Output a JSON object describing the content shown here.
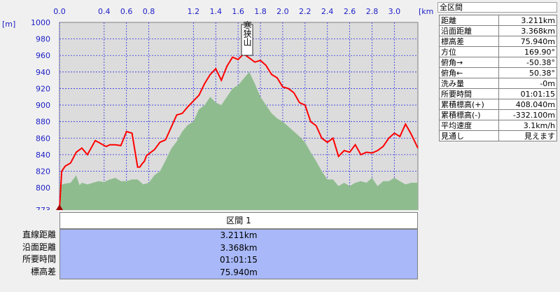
{
  "chart_data": {
    "type": "area",
    "title": "",
    "xlabel": "[km]",
    "ylabel": "[m]",
    "xlim": [
      0,
      3.211
    ],
    "ylim": [
      773,
      1000
    ],
    "x_ticks": [
      "0.0",
      "0.4",
      "0.6",
      "0.8",
      "1.2",
      "1.4",
      "1.6",
      "1.8",
      "2.0",
      "2.2",
      "2.4",
      "2.6",
      "2.8",
      "3.0"
    ],
    "y_ticks": [
      1000,
      980,
      960,
      940,
      920,
      900,
      880,
      860,
      840,
      820,
      800,
      773
    ],
    "peak": {
      "name": "寒狭山",
      "x": 1.69,
      "y": 960
    },
    "series": [
      {
        "name": "elevation-profile",
        "x": [
          0,
          0.02,
          0.05,
          0.1,
          0.15,
          0.2,
          0.25,
          0.3,
          0.32,
          0.35,
          0.4,
          0.42,
          0.45,
          0.5,
          0.55,
          0.6,
          0.65,
          0.7,
          0.72,
          0.74,
          0.76,
          0.78,
          0.8,
          0.85,
          0.9,
          0.95,
          1.0,
          1.05,
          1.1,
          1.15,
          1.2,
          1.25,
          1.3,
          1.35,
          1.4,
          1.45,
          1.5,
          1.55,
          1.6,
          1.65,
          1.7,
          1.75,
          1.8,
          1.85,
          1.9,
          1.95,
          2.0,
          2.05,
          2.1,
          2.15,
          2.2,
          2.25,
          2.3,
          2.35,
          2.4,
          2.45,
          2.5,
          2.55,
          2.6,
          2.65,
          2.7,
          2.75,
          2.8,
          2.85,
          2.9,
          2.95,
          3.0,
          3.05,
          3.1,
          3.15,
          3.211
        ],
        "values": [
          775,
          820,
          826,
          830,
          843,
          848,
          840,
          852,
          857,
          855,
          851,
          850,
          852,
          852,
          851,
          868,
          866,
          825,
          825,
          829,
          832,
          839,
          841,
          846,
          855,
          858,
          873,
          888,
          890,
          898,
          905,
          912,
          926,
          937,
          944,
          930,
          947,
          958,
          955,
          962,
          957,
          952,
          954,
          948,
          937,
          933,
          922,
          920,
          915,
          903,
          900,
          880,
          875,
          860,
          855,
          860,
          838,
          845,
          843,
          852,
          840,
          843,
          842,
          845,
          850,
          860,
          866,
          862,
          877,
          865,
          848
        ]
      },
      {
        "name": "terrain",
        "x": [
          0,
          0.05,
          0.1,
          0.15,
          0.18,
          0.2,
          0.25,
          0.3,
          0.35,
          0.4,
          0.45,
          0.5,
          0.55,
          0.6,
          0.65,
          0.7,
          0.75,
          0.8,
          0.85,
          0.9,
          0.95,
          1.0,
          1.05,
          1.1,
          1.15,
          1.2,
          1.25,
          1.3,
          1.35,
          1.4,
          1.45,
          1.5,
          1.55,
          1.6,
          1.65,
          1.7,
          1.75,
          1.8,
          1.85,
          1.9,
          1.95,
          2.0,
          2.05,
          2.1,
          2.15,
          2.2,
          2.25,
          2.3,
          2.35,
          2.4,
          2.45,
          2.5,
          2.55,
          2.6,
          2.65,
          2.7,
          2.75,
          2.8,
          2.85,
          2.9,
          2.95,
          3.0,
          3.05,
          3.1,
          3.15,
          3.211
        ],
        "values": [
          803,
          805,
          806,
          815,
          803,
          806,
          804,
          806,
          808,
          807,
          810,
          812,
          808,
          808,
          810,
          810,
          804,
          806,
          815,
          820,
          833,
          847,
          856,
          868,
          876,
          880,
          895,
          900,
          910,
          903,
          900,
          910,
          920,
          924,
          932,
          940,
          926,
          910,
          900,
          890,
          884,
          880,
          874,
          868,
          862,
          855,
          843,
          832,
          820,
          810,
          810,
          802,
          806,
          802,
          806,
          808,
          806,
          812,
          802,
          808,
          808,
          812,
          808,
          804,
          806,
          806
        ]
      }
    ]
  },
  "info": {
    "header": "全区間",
    "rows": [
      {
        "label": "距離",
        "value": "3.211km"
      },
      {
        "label": "沿面距離",
        "value": "3.368km"
      },
      {
        "label": "標高差",
        "value": "75.940m"
      },
      {
        "label": "方位",
        "value": "169.90°"
      },
      {
        "label": "俯角→",
        "value": "-50.38°"
      },
      {
        "label": "俯角←",
        "value": "50.38°"
      },
      {
        "label": "洗み量",
        "value": "-0m"
      },
      {
        "label": "所要時間",
        "value": "01:01:15"
      },
      {
        "label": "累積標高(+)",
        "value": "408.040m"
      },
      {
        "label": "累積標高(-)",
        "value": "-332.100m"
      },
      {
        "label": "平均速度",
        "value": "3.1km/h"
      },
      {
        "label": "見通し",
        "value": "見えます"
      }
    ]
  },
  "section": {
    "title": "区間 1",
    "labels": [
      "直線距離",
      "沿面距離",
      "所要時間",
      "標高差"
    ],
    "values": [
      "3.211km",
      "3.368km",
      "01:01:15",
      "75.940m"
    ]
  },
  "colors": {
    "plot_bg": "#dcdcdc",
    "grid": "#3030e0",
    "terrain": "#8fbc8f",
    "profile": "#ff0000",
    "axis_text": "#2020c8",
    "section_bg": "#a8b8f8"
  }
}
